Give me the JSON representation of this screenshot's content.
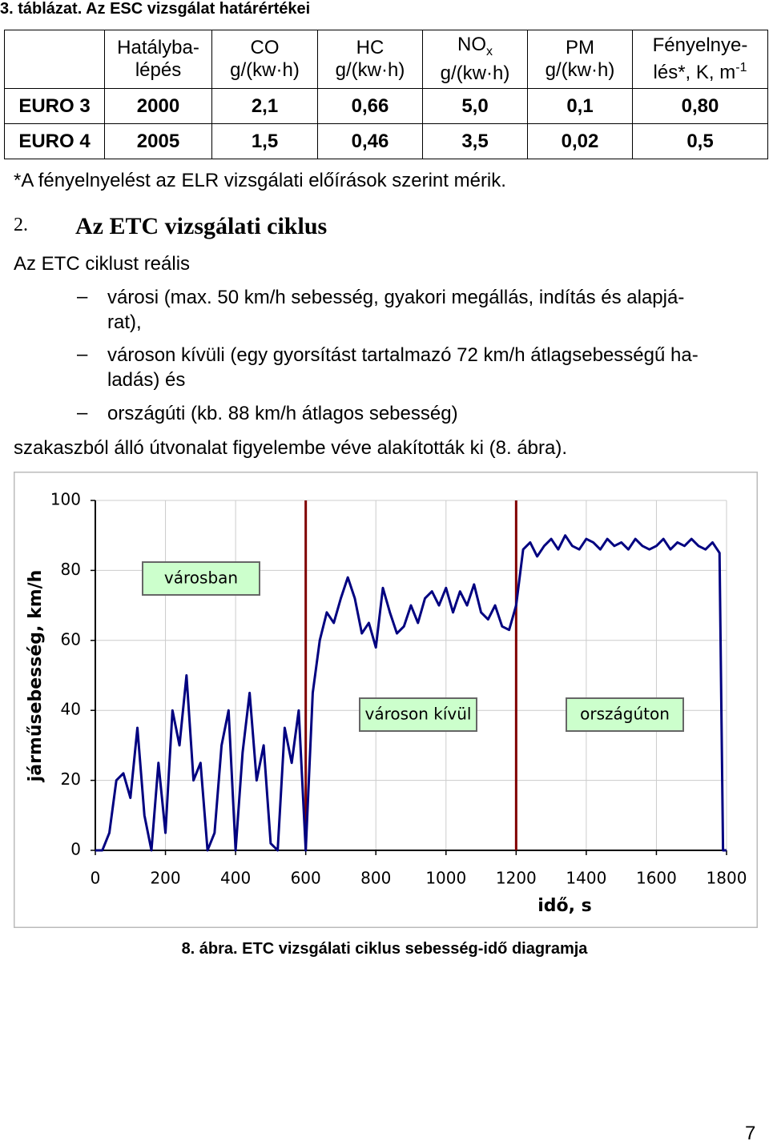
{
  "header": {
    "title": "3. táblázat. Az ESC vizsgálat határértékei"
  },
  "table": {
    "head": [
      {
        "line1": "Hatályba-",
        "line2": "lépés"
      },
      {
        "line1": "CO",
        "line2": "g/(kw·h)"
      },
      {
        "line1": "HC",
        "line2": "g/(kw·h)"
      },
      {
        "line1": "NO",
        "sub": "x",
        "line2": "g/(kw·h)"
      },
      {
        "line1": "PM",
        "line2": "g/(kw·h)"
      },
      {
        "line1": "Fényelnye-",
        "line2": "lés*, K, m",
        "sup": "-1"
      }
    ],
    "rows": [
      [
        "EURO 3",
        "2000",
        "2,1",
        "0,66",
        "5,0",
        "0,1",
        "0,80"
      ],
      [
        "EURO 4",
        "2005",
        "1,5",
        "0,46",
        "3,5",
        "0,02",
        "0,5"
      ]
    ],
    "footnote": "*A fényelnyelést az ELR vizsgálati előírások szerint mérik."
  },
  "section": {
    "number": "2.",
    "title": "Az ETC vizsgálati ciklus"
  },
  "body": {
    "intro": "Az ETC ciklust reális",
    "list": [
      [
        "városi (max. 50 km/h sebesség, gyakori megállás, indítás és alapjá-",
        "rat),"
      ],
      [
        "városon kívüli (egy gyorsítást tartalmazó 72 km/h átlagsebességű ha-",
        "ladás) és"
      ],
      [
        "országúti (kb. 88 km/h átlagos sebesség)"
      ]
    ],
    "outro": "szakaszból álló útvonalat figyelembe véve alakították ki (8. ábra)."
  },
  "chart_data": {
    "type": "line",
    "ylabel": "járműsebesség, km/h",
    "xlabel": "idő, s",
    "x": [
      0,
      20,
      40,
      60,
      80,
      100,
      120,
      140,
      160,
      180,
      200,
      220,
      240,
      260,
      280,
      300,
      320,
      340,
      360,
      380,
      400,
      420,
      440,
      460,
      480,
      500,
      520,
      540,
      560,
      580,
      600,
      620,
      640,
      660,
      680,
      700,
      720,
      740,
      760,
      780,
      800,
      820,
      840,
      860,
      880,
      900,
      920,
      940,
      960,
      980,
      1000,
      1020,
      1040,
      1060,
      1080,
      1100,
      1120,
      1140,
      1160,
      1180,
      1200,
      1220,
      1240,
      1260,
      1280,
      1300,
      1320,
      1340,
      1360,
      1380,
      1400,
      1420,
      1440,
      1460,
      1480,
      1500,
      1520,
      1540,
      1560,
      1580,
      1600,
      1620,
      1640,
      1660,
      1680,
      1700,
      1720,
      1740,
      1760,
      1780,
      1790,
      1800
    ],
    "series": [
      {
        "name": "sebesség",
        "color": "#000080",
        "values": [
          0,
          0,
          5,
          20,
          22,
          15,
          35,
          10,
          0,
          25,
          5,
          40,
          30,
          50,
          20,
          25,
          0,
          5,
          30,
          40,
          0,
          28,
          45,
          20,
          30,
          2,
          0,
          35,
          25,
          40,
          0,
          45,
          60,
          68,
          65,
          72,
          78,
          72,
          62,
          65,
          58,
          75,
          68,
          62,
          64,
          70,
          65,
          72,
          74,
          70,
          75,
          68,
          74,
          70,
          76,
          68,
          66,
          70,
          64,
          63,
          70,
          86,
          88,
          84,
          87,
          89,
          86,
          90,
          87,
          86,
          89,
          88,
          86,
          89,
          87,
          88,
          86,
          89,
          87,
          86,
          87,
          89,
          86,
          88,
          87,
          89,
          87,
          86,
          88,
          85,
          0,
          0
        ]
      }
    ],
    "xlim": [
      0,
      1800
    ],
    "ylim": [
      0,
      100
    ],
    "xticks": [
      0,
      200,
      400,
      600,
      800,
      1000,
      1200,
      1400,
      1600,
      1800
    ],
    "yticks": [
      0,
      20,
      40,
      60,
      80,
      100
    ],
    "grid": true,
    "dividers": [
      600,
      1200
    ],
    "divider_color": "#800000",
    "annotations": [
      "városban",
      "városon kívül",
      "országúton"
    ],
    "caption": "8. ábra. ETC vizsgálati ciklus sebesség-idő diagramja"
  },
  "page_number": "7"
}
